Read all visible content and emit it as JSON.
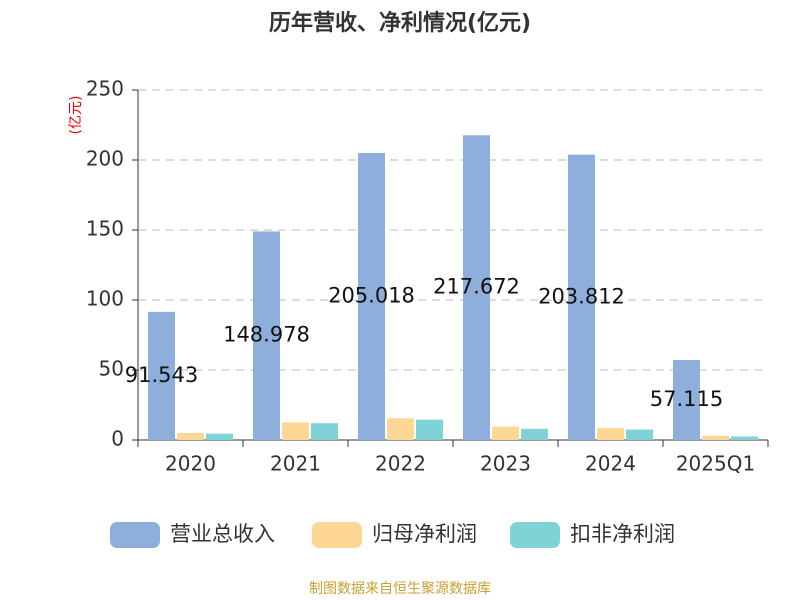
{
  "chart_data": {
    "type": "bar",
    "title": "历年营收、净利情况(亿元)",
    "y_label": "(亿元)",
    "categories": [
      "2020",
      "2021",
      "2022",
      "2023",
      "2024",
      "2025Q1"
    ],
    "series": [
      {
        "name": "营业总收入",
        "color": "#8eaedb",
        "values": [
          91.543,
          148.978,
          205.018,
          217.672,
          203.812,
          57.115
        ]
      },
      {
        "name": "归母净利润",
        "color": "#fdd794",
        "values": [
          5,
          12.5,
          15.5,
          9.5,
          8.5,
          3
        ]
      },
      {
        "name": "扣非净利润",
        "color": "#7fd3d6",
        "values": [
          4.5,
          12,
          14.5,
          8,
          7.5,
          2.5
        ]
      }
    ],
    "data_labels_series": 0,
    "ylim": [
      0,
      250
    ],
    "yticks": [
      0,
      50,
      100,
      150,
      200,
      250
    ],
    "grid": true,
    "footer": "制图数据来自恒生聚源数据库"
  }
}
